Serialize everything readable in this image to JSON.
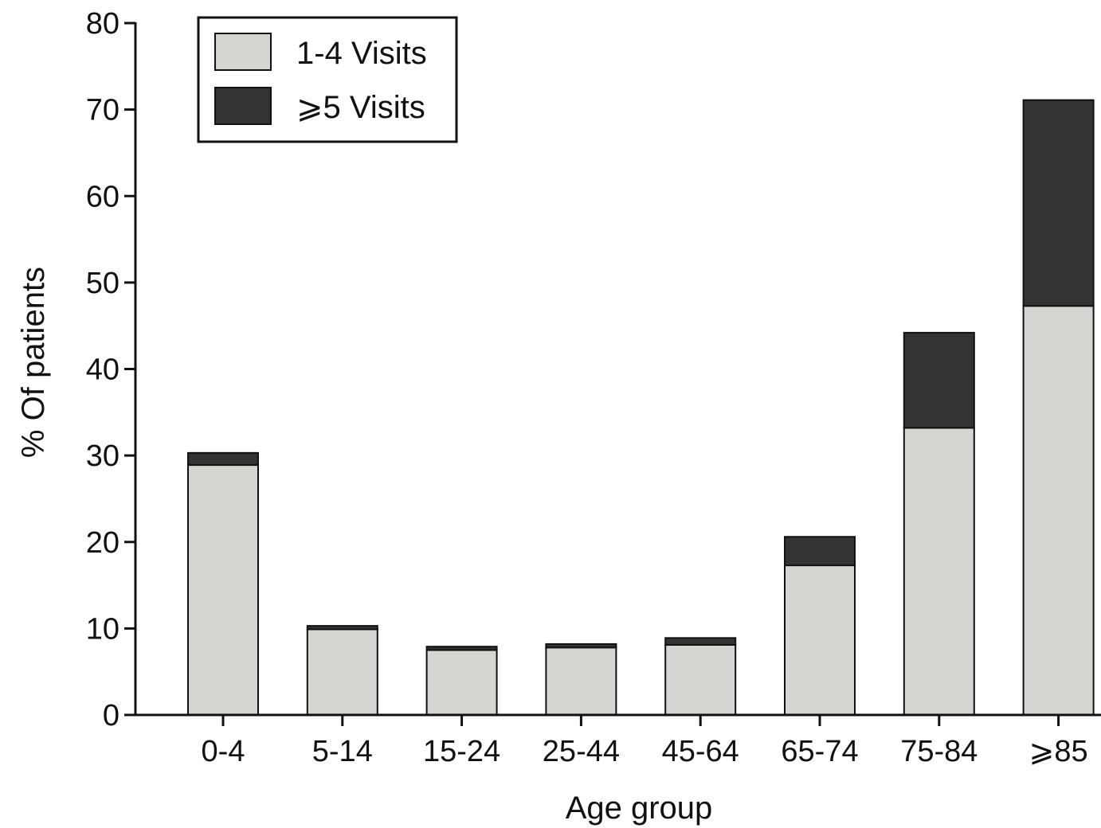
{
  "chart_data": {
    "type": "bar",
    "stacked": true,
    "categories": [
      "0-4",
      "5-14",
      "15-24",
      "25-44",
      "45-64",
      "65-74",
      "75-84",
      "⩾85"
    ],
    "series": [
      {
        "name": "1-4 Visits",
        "color": "#d4d6d2",
        "values": [
          28.9,
          9.9,
          7.5,
          7.8,
          8.1,
          17.3,
          33.2,
          47.3
        ]
      },
      {
        "name": "⩾5 Visits",
        "color": "#333333",
        "values": [
          1.4,
          0.4,
          0.4,
          0.4,
          0.8,
          3.3,
          11.0,
          23.8
        ]
      }
    ],
    "xlabel": "Age group",
    "ylabel": "% Of patients",
    "ylim": [
      0,
      80
    ],
    "yticks": [
      0,
      10,
      20,
      30,
      40,
      50,
      60,
      70,
      80
    ],
    "grid": false,
    "legend_position": "top-left"
  }
}
